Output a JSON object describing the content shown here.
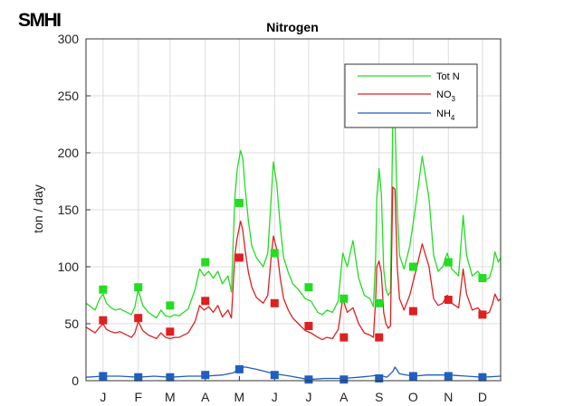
{
  "logo": "SMHI",
  "chart_data": {
    "type": "line",
    "title": "Nitrogen",
    "xlabel": "",
    "ylabel": "ton / day",
    "ylim": [
      0,
      300
    ],
    "yticks": [
      0,
      50,
      100,
      150,
      200,
      250,
      300
    ],
    "xlim": [
      0,
      365
    ],
    "xtick_positions": [
      15,
      46,
      74,
      105,
      135,
      166,
      196,
      227,
      258,
      288,
      319,
      349
    ],
    "xtick_labels": [
      "J",
      "F",
      "M",
      "A",
      "M",
      "J",
      "J",
      "A",
      "S",
      "O",
      "N",
      "D"
    ],
    "grid": true,
    "legend_position": "top-right",
    "series": [
      {
        "name": "Tot N",
        "color": "#22dd22",
        "x": [
          0,
          8,
          12,
          15,
          18,
          22,
          26,
          30,
          40,
          43,
          46,
          50,
          55,
          62,
          66,
          70,
          74,
          78,
          82,
          86,
          90,
          96,
          100,
          104,
          108,
          112,
          116,
          120,
          125,
          128,
          131,
          133,
          136,
          138,
          140,
          143,
          146,
          150,
          156,
          160,
          163,
          165,
          168,
          171,
          174,
          178,
          182,
          187,
          193,
          198,
          204,
          208,
          212,
          217,
          222,
          226,
          230,
          235,
          240,
          245,
          250,
          253,
          255,
          256,
          258,
          260,
          262,
          264,
          266,
          268,
          270,
          272,
          274,
          276,
          280,
          285,
          290,
          296,
          302,
          306,
          310,
          314,
          318,
          322,
          328,
          332,
          335,
          340,
          345,
          350,
          355,
          358,
          360,
          363,
          365
        ],
        "values": [
          68,
          62,
          72,
          76,
          68,
          64,
          62,
          63,
          58,
          65,
          80,
          66,
          60,
          55,
          62,
          57,
          56,
          58,
          57,
          60,
          63,
          80,
          98,
          92,
          96,
          90,
          96,
          85,
          92,
          78,
          160,
          185,
          202,
          195,
          170,
          140,
          118,
          108,
          100,
          112,
          160,
          192,
          172,
          135,
          108,
          95,
          85,
          80,
          72,
          70,
          60,
          58,
          62,
          60,
          70,
          112,
          100,
          123,
          90,
          75,
          72,
          65,
          110,
          160,
          186,
          165,
          98,
          80,
          75,
          78,
          225,
          228,
          150,
          110,
          98,
          118,
          152,
          197,
          160,
          110,
          96,
          100,
          112,
          98,
          92,
          145,
          110,
          92,
          96,
          88,
          90,
          100,
          113,
          104,
          108
        ]
      },
      {
        "name": "NO3",
        "color": "#dd2020",
        "x": [
          0,
          8,
          12,
          15,
          18,
          22,
          26,
          30,
          40,
          43,
          46,
          50,
          55,
          62,
          66,
          70,
          74,
          78,
          82,
          86,
          90,
          96,
          100,
          104,
          108,
          112,
          116,
          120,
          125,
          128,
          131,
          133,
          136,
          138,
          140,
          143,
          146,
          150,
          156,
          160,
          163,
          165,
          168,
          171,
          174,
          178,
          182,
          187,
          193,
          198,
          204,
          208,
          212,
          217,
          222,
          226,
          230,
          235,
          240,
          245,
          250,
          253,
          255,
          256,
          258,
          260,
          262,
          264,
          266,
          268,
          270,
          272,
          274,
          276,
          280,
          285,
          290,
          296,
          302,
          306,
          310,
          314,
          318,
          322,
          328,
          332,
          335,
          340,
          345,
          350,
          355,
          358,
          360,
          363,
          365
        ],
        "values": [
          47,
          42,
          47,
          50,
          45,
          43,
          42,
          43,
          38,
          42,
          52,
          44,
          40,
          37,
          42,
          38,
          37,
          38,
          38,
          40,
          42,
          52,
          66,
          62,
          65,
          60,
          66,
          56,
          62,
          55,
          110,
          125,
          140,
          132,
          115,
          95,
          82,
          73,
          68,
          75,
          108,
          127,
          115,
          90,
          72,
          62,
          55,
          50,
          44,
          42,
          38,
          36,
          38,
          37,
          45,
          72,
          60,
          64,
          50,
          42,
          40,
          38,
          72,
          100,
          105,
          95,
          60,
          50,
          46,
          48,
          170,
          168,
          100,
          72,
          62,
          75,
          95,
          120,
          100,
          72,
          66,
          68,
          75,
          68,
          64,
          98,
          76,
          62,
          64,
          58,
          60,
          68,
          76,
          70,
          72
        ]
      },
      {
        "name": "NH4",
        "color": "#1f5fbf",
        "x": [
          0,
          15,
          30,
          46,
          60,
          74,
          90,
          105,
          120,
          130,
          135,
          140,
          150,
          166,
          180,
          196,
          210,
          227,
          240,
          250,
          258,
          265,
          270,
          272,
          276,
          288,
          300,
          319,
          335,
          349,
          365
        ],
        "values": [
          3,
          4,
          4,
          3,
          4,
          3,
          4,
          4,
          5,
          7,
          11,
          12,
          10,
          6,
          4,
          1,
          2,
          2,
          3,
          4,
          5,
          3,
          8,
          12,
          6,
          4,
          5,
          5,
          4,
          3,
          4
        ]
      }
    ],
    "markers": [
      {
        "series": "Tot N",
        "x": [
          15,
          46,
          74,
          105,
          135,
          166,
          196,
          227,
          258,
          288,
          319,
          349
        ],
        "values": [
          80,
          82,
          66,
          104,
          156,
          112,
          82,
          72,
          68,
          100,
          104,
          90
        ]
      },
      {
        "series": "NO3",
        "x": [
          15,
          46,
          74,
          105,
          135,
          166,
          196,
          227,
          258,
          288,
          319,
          349
        ],
        "values": [
          53,
          55,
          43,
          70,
          108,
          68,
          48,
          38,
          38,
          61,
          71,
          58
        ]
      },
      {
        "series": "NH4",
        "x": [
          15,
          46,
          74,
          105,
          135,
          166,
          196,
          227,
          258,
          288,
          319,
          349
        ],
        "values": [
          4,
          3,
          3,
          5,
          10,
          5,
          1,
          1,
          2,
          4,
          4,
          3
        ]
      }
    ],
    "legend": [
      {
        "label": "Tot N",
        "sub": ""
      },
      {
        "label": "NO",
        "sub": "3"
      },
      {
        "label": "NH",
        "sub": "4"
      }
    ]
  }
}
